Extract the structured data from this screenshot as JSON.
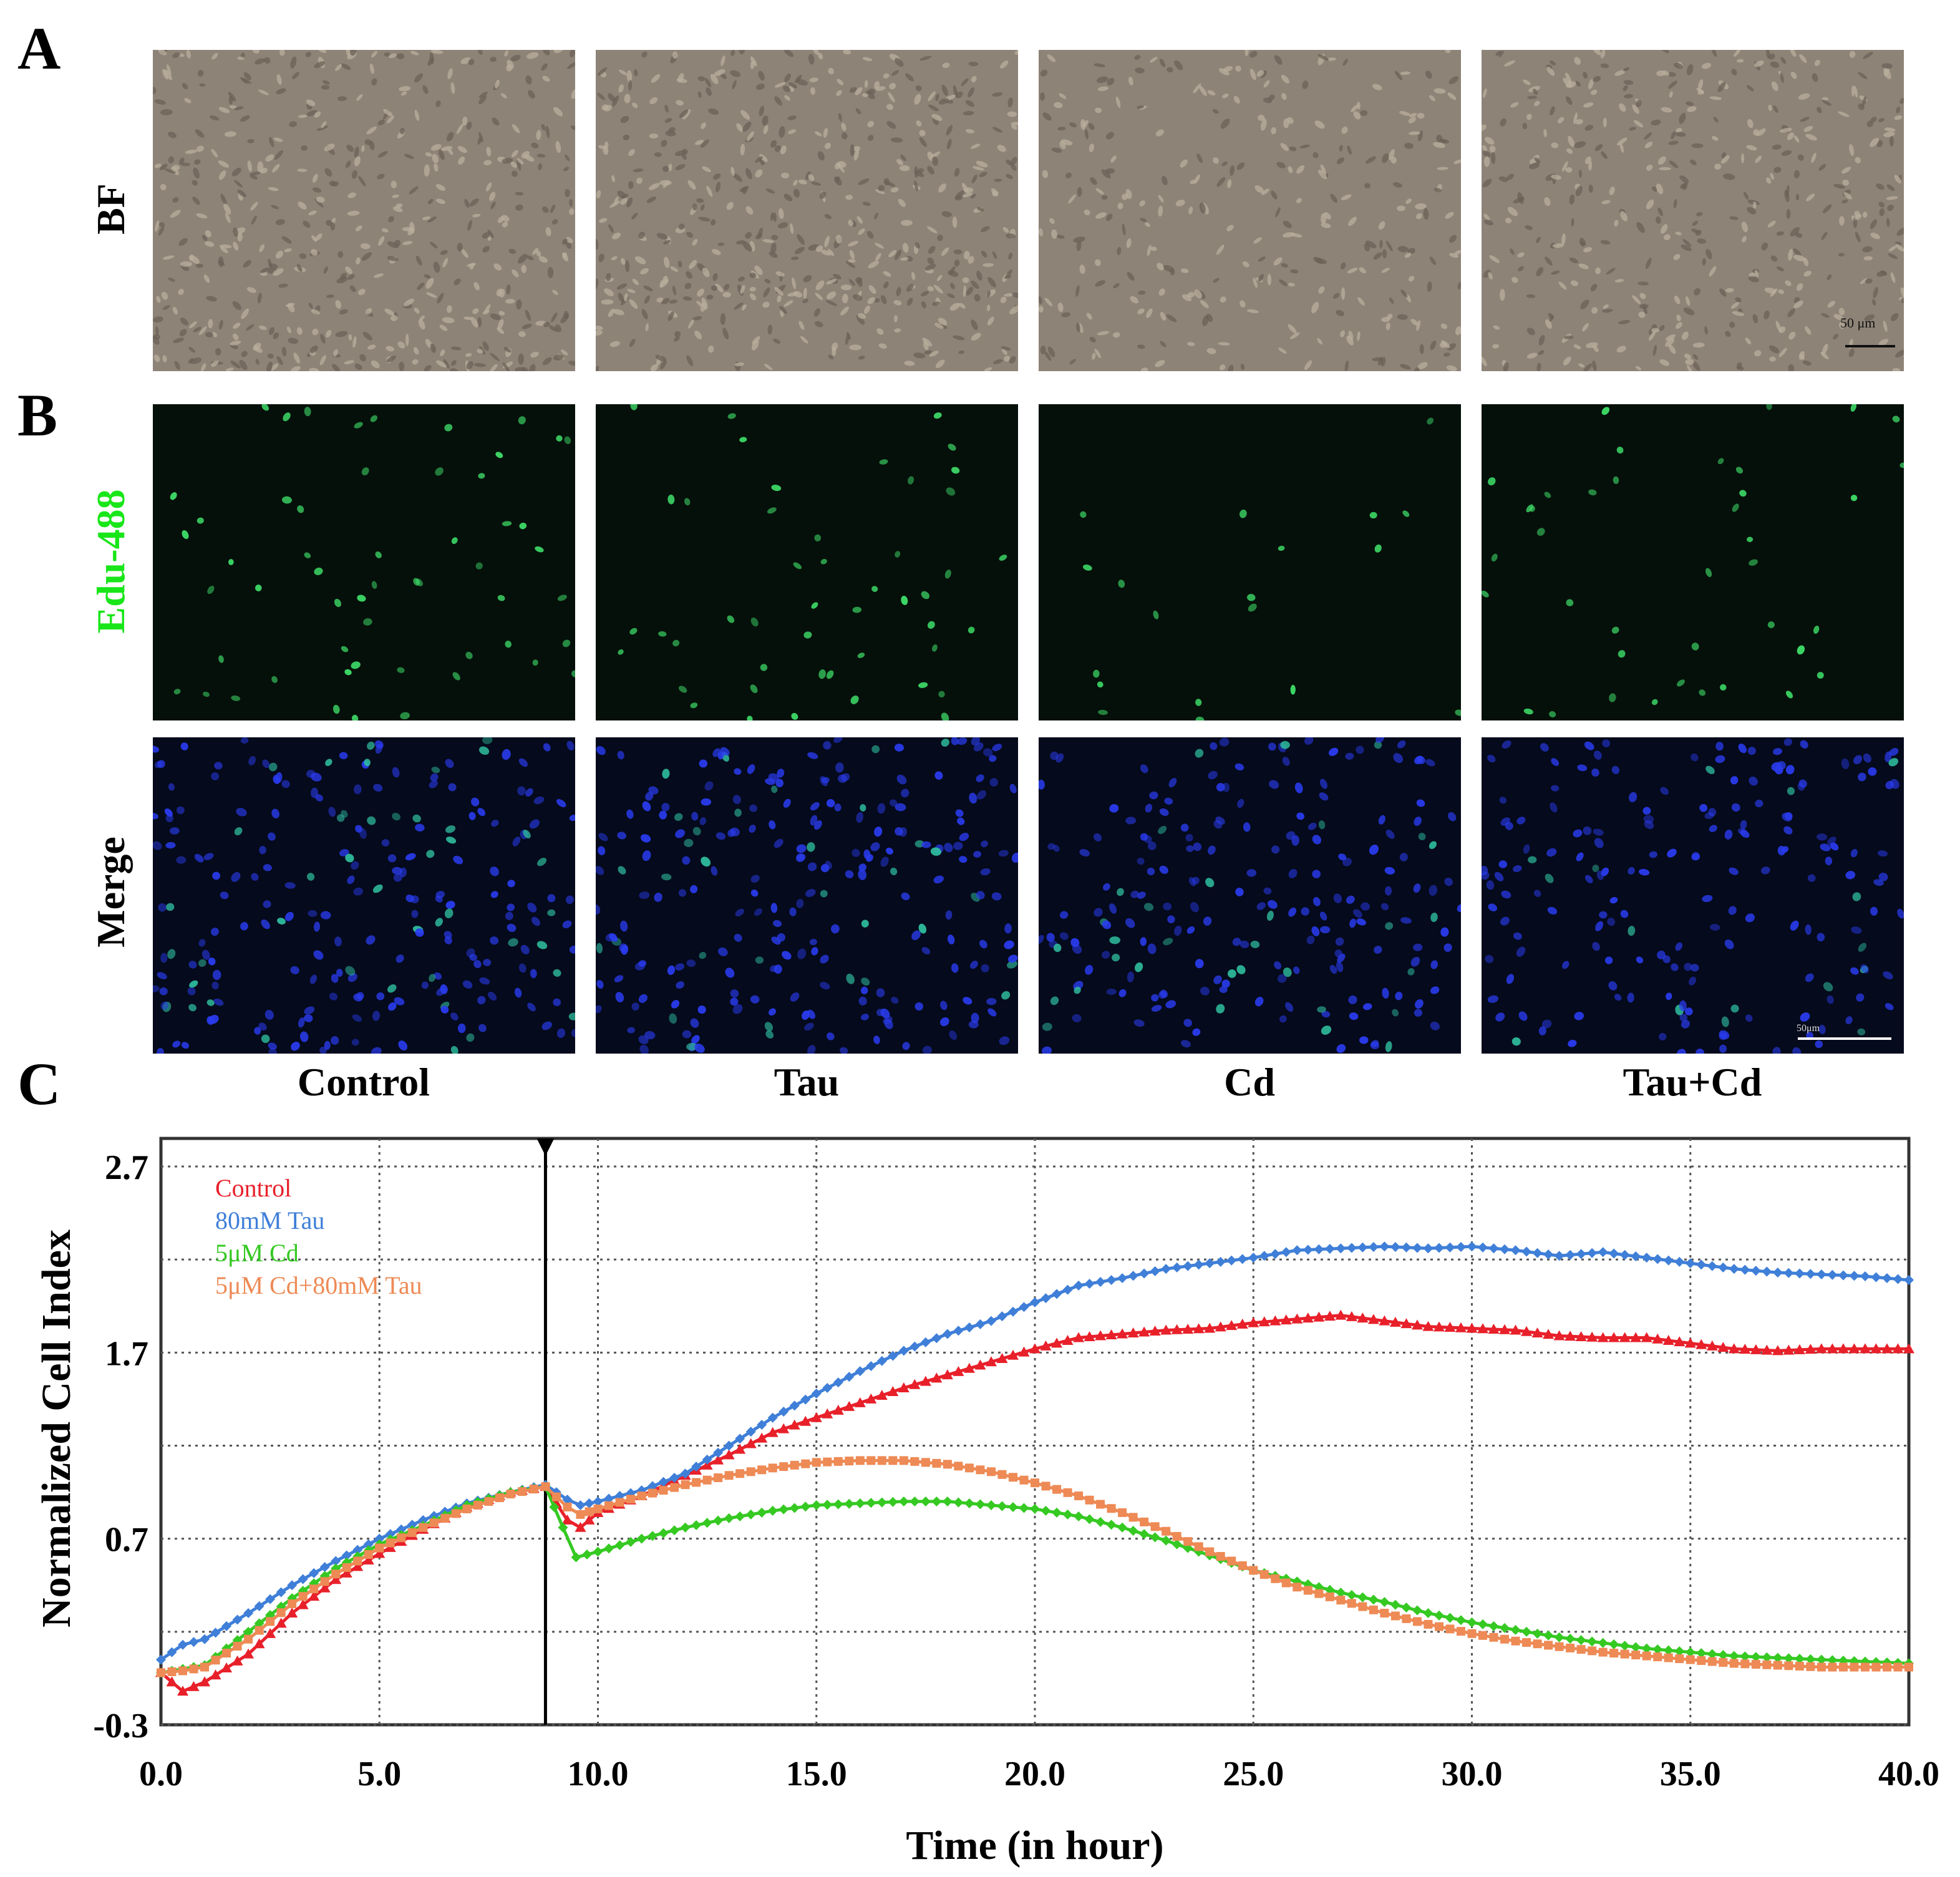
{
  "figure": {
    "panels": {
      "a": "A",
      "b": "B",
      "c": "C"
    },
    "row_labels": {
      "bf": "BF",
      "edu": "Edu-488",
      "merge": "Merge"
    },
    "columns": [
      "Control",
      "Tau",
      "Cd",
      "Tau+Cd"
    ],
    "scale_bar_bf": "50 μm",
    "scale_bar_merge": "50μm",
    "colors": {
      "edu_label": "#19e619",
      "bf_bg": "#8e8377",
      "edu_bg": "#05100a",
      "merge_bg": "#050a1c",
      "nucleus_blue": "#2a3cf0",
      "nucleus_green": "#3fe06a"
    }
  },
  "chart_data": {
    "type": "line",
    "xlabel": "Time (in hour)",
    "ylabel": "Normalized Cell Index",
    "xlim": [
      0,
      40
    ],
    "ylim": [
      -0.3,
      2.7
    ],
    "x_ticks": [
      "0.0",
      "5.0",
      "10.0",
      "15.0",
      "20.0",
      "25.0",
      "30.0",
      "35.0",
      "40.0"
    ],
    "y_ticks": [
      "-0.3",
      "0.7",
      "1.7",
      "2.7"
    ],
    "grid": true,
    "legend": "top-left",
    "marker_time": 8.8,
    "series": [
      {
        "name": "Control",
        "color": "#e8202a",
        "marker": "triangle",
        "x": [
          0,
          0.5,
          1,
          2,
          3,
          4,
          5,
          6,
          7,
          8,
          8.8,
          9.3,
          9.6,
          10,
          11,
          12,
          13,
          14,
          15,
          16,
          17,
          18,
          19,
          20,
          21,
          22,
          23,
          24,
          25,
          26,
          27,
          28,
          29,
          30,
          31,
          32,
          33,
          34,
          35,
          36,
          37,
          38,
          39,
          40
        ],
        "y": [
          -0.02,
          -0.12,
          -0.07,
          0.08,
          0.3,
          0.48,
          0.62,
          0.75,
          0.87,
          0.95,
          0.98,
          0.8,
          0.76,
          0.84,
          0.93,
          1.04,
          1.15,
          1.27,
          1.35,
          1.43,
          1.51,
          1.58,
          1.65,
          1.72,
          1.78,
          1.8,
          1.82,
          1.83,
          1.86,
          1.88,
          1.9,
          1.87,
          1.84,
          1.83,
          1.82,
          1.79,
          1.78,
          1.78,
          1.75,
          1.72,
          1.71,
          1.72,
          1.72,
          1.72
        ]
      },
      {
        "name": "80mM Tau",
        "color": "#3f7fd8",
        "marker": "diamond",
        "x": [
          0,
          0.5,
          1,
          2,
          3,
          4,
          5,
          6,
          7,
          8,
          8.8,
          9.3,
          9.6,
          10,
          11,
          12,
          13,
          14,
          15,
          16,
          17,
          18,
          19,
          20,
          21,
          22,
          23,
          24,
          25,
          26,
          27,
          28,
          29,
          30,
          31,
          32,
          33,
          34,
          35,
          36,
          37,
          38,
          39,
          40
        ],
        "y": [
          0.05,
          0.13,
          0.16,
          0.3,
          0.45,
          0.58,
          0.7,
          0.8,
          0.89,
          0.95,
          0.99,
          0.91,
          0.88,
          0.9,
          0.96,
          1.05,
          1.2,
          1.35,
          1.48,
          1.6,
          1.71,
          1.8,
          1.87,
          1.97,
          2.06,
          2.1,
          2.15,
          2.18,
          2.21,
          2.25,
          2.26,
          2.27,
          2.26,
          2.27,
          2.25,
          2.22,
          2.24,
          2.21,
          2.18,
          2.15,
          2.13,
          2.12,
          2.11,
          2.09
        ]
      },
      {
        "name": "5μM Cd",
        "color": "#35c922",
        "marker": "diamond",
        "x": [
          0,
          0.5,
          1,
          2,
          3,
          4,
          5,
          6,
          7,
          8,
          8.8,
          9.2,
          9.5,
          10,
          11,
          12,
          13,
          14,
          15,
          16,
          17,
          18,
          19,
          20,
          21,
          22,
          23,
          24,
          25,
          26,
          27,
          28,
          29,
          30,
          31,
          32,
          33,
          34,
          35,
          36,
          37,
          38,
          39,
          40
        ],
        "y": [
          -0.02,
          0.0,
          0.02,
          0.2,
          0.38,
          0.54,
          0.67,
          0.77,
          0.88,
          0.95,
          0.98,
          0.76,
          0.6,
          0.63,
          0.7,
          0.76,
          0.81,
          0.85,
          0.88,
          0.89,
          0.9,
          0.9,
          0.88,
          0.86,
          0.82,
          0.76,
          0.69,
          0.61,
          0.53,
          0.47,
          0.41,
          0.36,
          0.3,
          0.25,
          0.21,
          0.17,
          0.14,
          0.11,
          0.09,
          0.07,
          0.06,
          0.05,
          0.04,
          0.03
        ]
      },
      {
        "name": "5μM Cd+80mM Tau",
        "color": "#ee8a55",
        "marker": "square",
        "x": [
          0,
          0.5,
          1,
          2,
          3,
          4,
          5,
          6,
          7,
          8,
          8.8,
          9.3,
          9.6,
          10,
          11,
          12,
          13,
          14,
          15,
          16,
          17,
          18,
          19,
          20,
          21,
          22,
          23,
          24,
          25,
          26,
          27,
          28,
          29,
          30,
          31,
          32,
          33,
          34,
          35,
          36,
          37,
          38,
          39,
          40
        ],
        "y": [
          -0.02,
          -0.01,
          0.01,
          0.16,
          0.35,
          0.51,
          0.65,
          0.76,
          0.86,
          0.94,
          0.98,
          0.87,
          0.83,
          0.86,
          0.93,
          0.99,
          1.04,
          1.08,
          1.11,
          1.12,
          1.12,
          1.1,
          1.06,
          1.0,
          0.93,
          0.84,
          0.74,
          0.63,
          0.53,
          0.44,
          0.37,
          0.3,
          0.24,
          0.19,
          0.15,
          0.12,
          0.09,
          0.07,
          0.05,
          0.03,
          0.02,
          0.01,
          0.01,
          0.01
        ]
      }
    ]
  }
}
